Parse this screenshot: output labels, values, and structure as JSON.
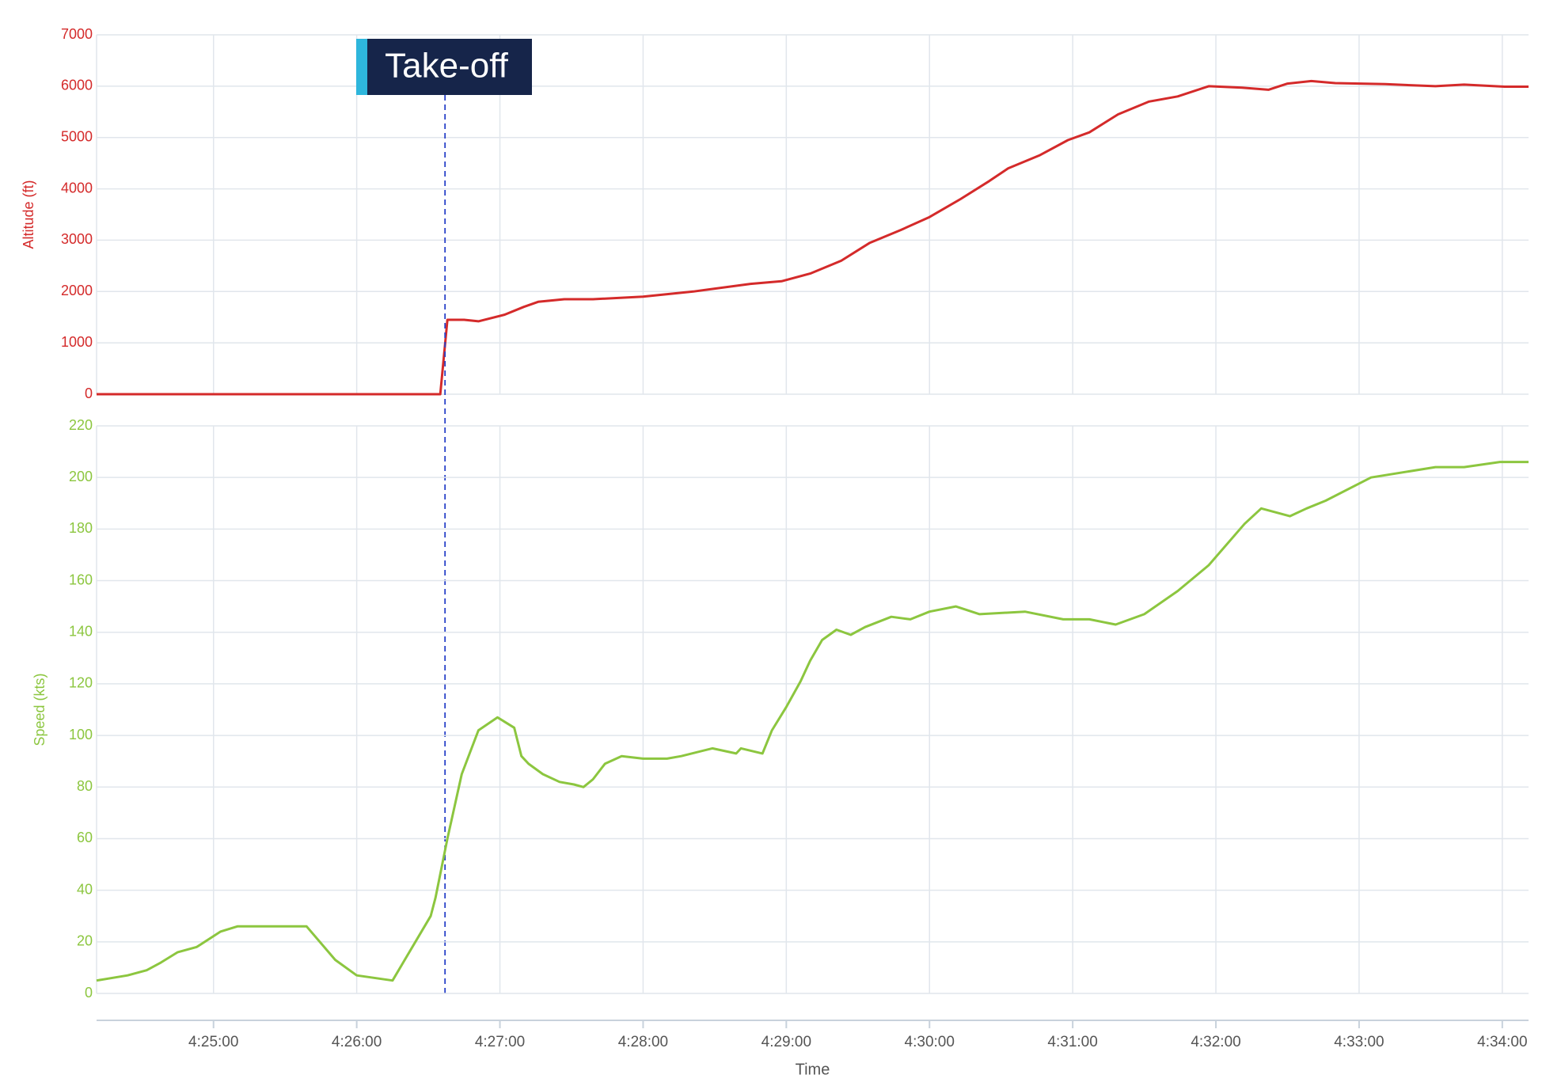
{
  "chart_data": [
    {
      "type": "line",
      "y_label": "Altitude (ft)",
      "x": [
        "4:24:11",
        "4:26:35",
        "4:26:38",
        "4:26:45",
        "4:26:51",
        "4:27:02",
        "4:27:10",
        "4:27:16",
        "4:27:27",
        "4:27:39",
        "4:28:00",
        "4:28:21",
        "4:28:45",
        "4:28:58",
        "4:29:10",
        "4:29:23",
        "4:29:35",
        "4:29:48",
        "4:30:00",
        "4:30:13",
        "4:30:25",
        "4:30:33",
        "4:30:46",
        "4:30:58",
        "4:31:07",
        "4:31:19",
        "4:31:32",
        "4:31:44",
        "4:31:57",
        "4:32:11",
        "4:32:22",
        "4:32:30",
        "4:32:40",
        "4:32:50",
        "4:33:11",
        "4:33:32",
        "4:33:44",
        "4:34:01",
        "4:34:11"
      ],
      "series": [
        {
          "name": "Altitude",
          "color": "#d42a2a",
          "values": [
            0,
            0,
            1450,
            1450,
            1420,
            1550,
            1700,
            1800,
            1850,
            1850,
            1900,
            2000,
            2150,
            2200,
            2350,
            2600,
            2950,
            3200,
            3450,
            3800,
            4150,
            4400,
            4650,
            4950,
            5100,
            5450,
            5700,
            5800,
            6000,
            5970,
            5930,
            6050,
            6100,
            6060,
            6040,
            6000,
            6030,
            5990,
            5990
          ]
        }
      ],
      "ylim": [
        0,
        7000
      ],
      "yticks": [
        0,
        1000,
        2000,
        3000,
        4000,
        5000,
        6000,
        7000
      ],
      "xlim": [
        "4:24:11",
        "4:34:11"
      ],
      "xticks": [
        "4:25:00",
        "4:26:00",
        "4:27:00",
        "4:28:00",
        "4:29:00",
        "4:30:00",
        "4:31:00",
        "4:32:00",
        "4:33:00",
        "4:34:00"
      ],
      "grid": true,
      "annotations": [
        {
          "text": "Take-off",
          "x": "4:26:37"
        }
      ]
    },
    {
      "type": "line",
      "y_label": "Speed (kts)",
      "x_label": "Time",
      "x": [
        "4:24:11",
        "4:24:24",
        "4:24:32",
        "4:24:38",
        "4:24:45",
        "4:24:53",
        "4:25:03",
        "4:25:10",
        "4:25:39",
        "4:25:51",
        "4:26:00",
        "4:26:15",
        "4:26:31",
        "4:26:33",
        "4:26:38",
        "4:26:44",
        "4:26:51",
        "4:26:59",
        "4:27:06",
        "4:27:09",
        "4:27:12",
        "4:27:18",
        "4:27:25",
        "4:27:31",
        "4:27:35",
        "4:27:39",
        "4:27:44",
        "4:27:51",
        "4:28:00",
        "4:28:10",
        "4:28:16",
        "4:28:29",
        "4:28:39",
        "4:28:41",
        "4:28:50",
        "4:28:54",
        "4:29:00",
        "4:29:06",
        "4:29:10",
        "4:29:15",
        "4:29:21",
        "4:29:27",
        "4:29:33",
        "4:29:44",
        "4:29:52",
        "4:30:00",
        "4:30:11",
        "4:30:21",
        "4:30:40",
        "4:30:56",
        "4:31:07",
        "4:31:18",
        "4:31:30",
        "4:31:44",
        "4:31:57",
        "4:32:12",
        "4:32:19",
        "4:32:23",
        "4:32:31",
        "4:32:38",
        "4:32:46",
        "4:33:05",
        "4:33:32",
        "4:33:44",
        "4:33:59",
        "4:34:11"
      ],
      "series": [
        {
          "name": "Speed",
          "color": "#8cc63f",
          "values": [
            5,
            7,
            9,
            12,
            16,
            18,
            24,
            26,
            26,
            13,
            7,
            5,
            30,
            37,
            60,
            85,
            102,
            107,
            103,
            92,
            89,
            85,
            82,
            81,
            80,
            83,
            89,
            92,
            91,
            91,
            92,
            95,
            93,
            95,
            93,
            102,
            111,
            121,
            129,
            137,
            141,
            139,
            142,
            146,
            145,
            148,
            150,
            147,
            148,
            145,
            145,
            143,
            147,
            156,
            166,
            182,
            188,
            187,
            185,
            188,
            191,
            200,
            204,
            204,
            206,
            206
          ]
        }
      ],
      "ylim": [
        0,
        220
      ],
      "yticks": [
        0,
        20,
        40,
        60,
        80,
        100,
        120,
        140,
        160,
        180,
        200,
        220
      ],
      "xlim": [
        "4:24:11",
        "4:34:11"
      ],
      "xticks": [
        "4:25:00",
        "4:26:00",
        "4:27:00",
        "4:28:00",
        "4:29:00",
        "4:30:00",
        "4:31:00",
        "4:32:00",
        "4:33:00",
        "4:34:00"
      ],
      "grid": true
    }
  ]
}
